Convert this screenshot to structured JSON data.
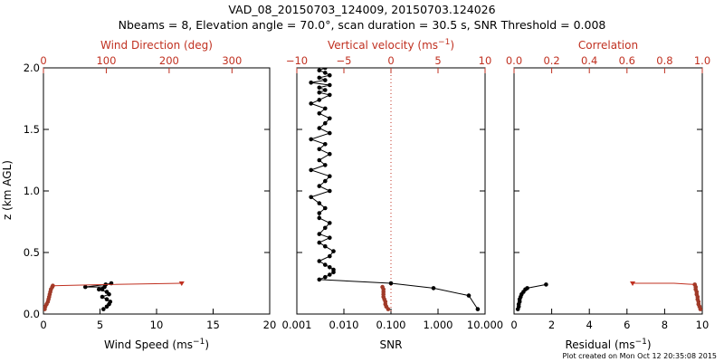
{
  "title_line1": "VAD_08_20150703_124009, 20150703.124026",
  "title_line2": "Nbeams = 8, Elevation angle = 70.0°, scan duration = 30.5 s, SNR Threshold = 0.008",
  "footer": "Plot created on Mon Oct 12 20:35:08 2015",
  "colors": {
    "black": "#000000",
    "red": "#c03020",
    "dark_red": "#a03a28"
  },
  "chart_data": [
    {
      "type": "line",
      "panel": "wind",
      "ylabel": "z (km AGL)",
      "ylim": [
        0,
        2
      ],
      "yticks": [
        "0.0",
        "0.5",
        "1.0",
        "1.5",
        "2.0"
      ],
      "bottom_axis": {
        "label": "Wind Speed (ms",
        "label_sup": "−1",
        "label_end": ")",
        "range": [
          0,
          20
        ],
        "ticks": [
          "0",
          "5",
          "10",
          "15",
          "20"
        ]
      },
      "top_axis": {
        "label": "Wind Direction (deg)",
        "range": [
          0,
          360
        ],
        "ticks": [
          "0",
          "100",
          "200",
          "300"
        ]
      },
      "series": [
        {
          "axis": "bottom",
          "color": "black",
          "x": [
            5.3,
            5.6,
            5.8,
            5.9,
            5.6,
            5.2,
            5.8,
            5.6,
            4.9,
            5.2,
            5.4,
            3.7,
            5.5,
            6.0
          ],
          "y": [
            0.04,
            0.06,
            0.08,
            0.1,
            0.12,
            0.14,
            0.16,
            0.18,
            0.2,
            0.2,
            0.22,
            0.22,
            0.24,
            0.25
          ]
        },
        {
          "axis": "top",
          "color": "dark_red",
          "x": [
            2,
            3,
            5,
            7,
            8,
            9,
            10,
            11,
            12,
            14,
            15
          ],
          "y": [
            0.04,
            0.06,
            0.08,
            0.1,
            0.12,
            0.14,
            0.16,
            0.18,
            0.2,
            0.22,
            0.23
          ]
        },
        {
          "axis": "top",
          "color": "red",
          "line_only": true,
          "x": [
            15,
            100,
            220
          ],
          "y": [
            0.23,
            0.24,
            0.25
          ]
        }
      ]
    },
    {
      "type": "line",
      "panel": "snr",
      "ylim": [
        0,
        2
      ],
      "bottom_axis": {
        "label": "SNR",
        "range": [
          0.001,
          10
        ],
        "log": true,
        "ticks": [
          "0.001",
          "0.010",
          "0.100",
          "1.000",
          "10.000"
        ]
      },
      "top_axis": {
        "label": "Vertical velocity (ms",
        "label_sup": "−1",
        "label_end": ")",
        "range": [
          -10,
          10
        ],
        "ticks": [
          "−10",
          "−5",
          "0",
          "5",
          "10"
        ],
        "zero_line": true
      },
      "series": [
        {
          "axis": "bottom",
          "color": "black",
          "x": [
            7.0,
            4.5,
            0.8,
            0.1,
            0.003,
            0.004,
            0.005,
            0.006,
            0.006,
            0.005,
            0.004,
            0.003,
            0.005,
            0.006,
            0.004,
            0.003,
            0.005,
            0.003,
            0.004,
            0.005,
            0.003,
            0.003,
            0.004,
            0.003,
            0.002,
            0.005,
            0.003,
            0.004,
            0.005,
            0.002,
            0.004,
            0.003,
            0.005,
            0.003,
            0.004,
            0.002,
            0.005,
            0.003,
            0.004,
            0.005,
            0.003,
            0.004,
            0.002,
            0.003,
            0.005,
            0.003,
            0.004,
            0.003,
            0.005,
            0.002,
            0.004,
            0.003,
            0.005,
            0.004,
            0.003,
            0.004
          ],
          "y": [
            0.04,
            0.15,
            0.21,
            0.25,
            0.28,
            0.3,
            0.32,
            0.34,
            0.36,
            0.38,
            0.4,
            0.43,
            0.47,
            0.51,
            0.55,
            0.58,
            0.62,
            0.65,
            0.7,
            0.74,
            0.78,
            0.82,
            0.86,
            0.9,
            0.95,
            1.0,
            1.04,
            1.08,
            1.12,
            1.17,
            1.21,
            1.25,
            1.3,
            1.34,
            1.38,
            1.42,
            1.47,
            1.51,
            1.55,
            1.59,
            1.63,
            1.67,
            1.71,
            1.74,
            1.78,
            1.8,
            1.82,
            1.84,
            1.86,
            1.88,
            1.9,
            1.92,
            1.94,
            1.96,
            1.98,
            2.0
          ]
        },
        {
          "axis": "top",
          "color": "dark_red",
          "x": [
            -0.3,
            -0.5,
            -0.6,
            -0.6,
            -0.7,
            -0.8,
            -0.8,
            -0.8,
            -0.8,
            -0.9
          ],
          "y": [
            0.04,
            0.06,
            0.08,
            0.1,
            0.12,
            0.14,
            0.16,
            0.18,
            0.2,
            0.22
          ]
        }
      ]
    },
    {
      "type": "line",
      "panel": "residual",
      "ylim": [
        0,
        2
      ],
      "bottom_axis": {
        "label": "Residual (ms",
        "label_sup": "−1",
        "label_end": ")",
        "range": [
          0,
          10
        ],
        "ticks": [
          "0",
          "2",
          "4",
          "6",
          "8",
          "10"
        ]
      },
      "top_axis": {
        "label": "Correlation",
        "range": [
          0,
          1
        ],
        "ticks": [
          "0.0",
          "0.2",
          "0.4",
          "0.6",
          "0.8",
          "1.0"
        ]
      },
      "series": [
        {
          "axis": "bottom",
          "color": "black",
          "x": [
            0.2,
            0.25,
            0.25,
            0.3,
            0.3,
            0.35,
            0.4,
            0.5,
            0.6,
            0.7,
            1.7
          ],
          "y": [
            0.04,
            0.06,
            0.08,
            0.1,
            0.12,
            0.14,
            0.16,
            0.18,
            0.2,
            0.21,
            0.24
          ]
        },
        {
          "axis": "top",
          "color": "dark_red",
          "x": [
            0.99,
            0.985,
            0.98,
            0.98,
            0.975,
            0.975,
            0.97,
            0.97,
            0.965,
            0.965,
            0.96
          ],
          "y": [
            0.04,
            0.06,
            0.08,
            0.1,
            0.12,
            0.14,
            0.16,
            0.18,
            0.2,
            0.22,
            0.24
          ]
        },
        {
          "axis": "top",
          "color": "red",
          "line_only": true,
          "x": [
            0.96,
            0.85,
            0.63
          ],
          "y": [
            0.24,
            0.25,
            0.25
          ]
        }
      ]
    }
  ]
}
